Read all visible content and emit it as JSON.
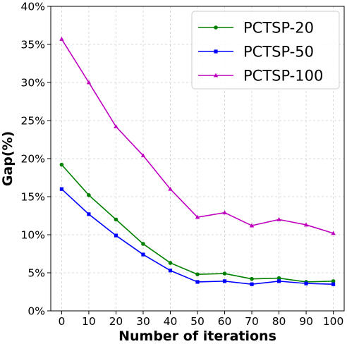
{
  "chart_data": {
    "type": "line",
    "title": "",
    "xlabel": "Number of iterations",
    "ylabel": "Gap(%)",
    "x": [
      0,
      10,
      20,
      30,
      40,
      50,
      60,
      70,
      80,
      90,
      100
    ],
    "xlim": [
      -4,
      104
    ],
    "ylim": [
      0,
      40
    ],
    "x_ticks": [
      "0",
      "10",
      "20",
      "30",
      "40",
      "50",
      "60",
      "70",
      "80",
      "90",
      "100"
    ],
    "y_ticks": [
      "0%",
      "5%",
      "10%",
      "15%",
      "20%",
      "25%",
      "30%",
      "35%",
      "40%"
    ],
    "y_tick_values": [
      0,
      5,
      10,
      15,
      20,
      25,
      30,
      35,
      40
    ],
    "grid": true,
    "legend_position": "top-right",
    "series": [
      {
        "name": "PCTSP-20",
        "color": "#008000",
        "marker": "circle",
        "values": [
          19.2,
          15.2,
          12.0,
          8.8,
          6.3,
          4.8,
          4.9,
          4.2,
          4.3,
          3.8,
          3.9
        ]
      },
      {
        "name": "PCTSP-50",
        "color": "#0000ff",
        "marker": "square",
        "values": [
          16.0,
          12.7,
          9.9,
          7.4,
          5.3,
          3.8,
          3.9,
          3.5,
          3.9,
          3.6,
          3.5
        ]
      },
      {
        "name": "PCTSP-100",
        "color": "#bf00bf",
        "marker": "triangle",
        "values": [
          35.7,
          30.0,
          24.2,
          20.4,
          16.0,
          12.3,
          12.9,
          11.2,
          12.0,
          11.3,
          10.2
        ]
      }
    ]
  }
}
